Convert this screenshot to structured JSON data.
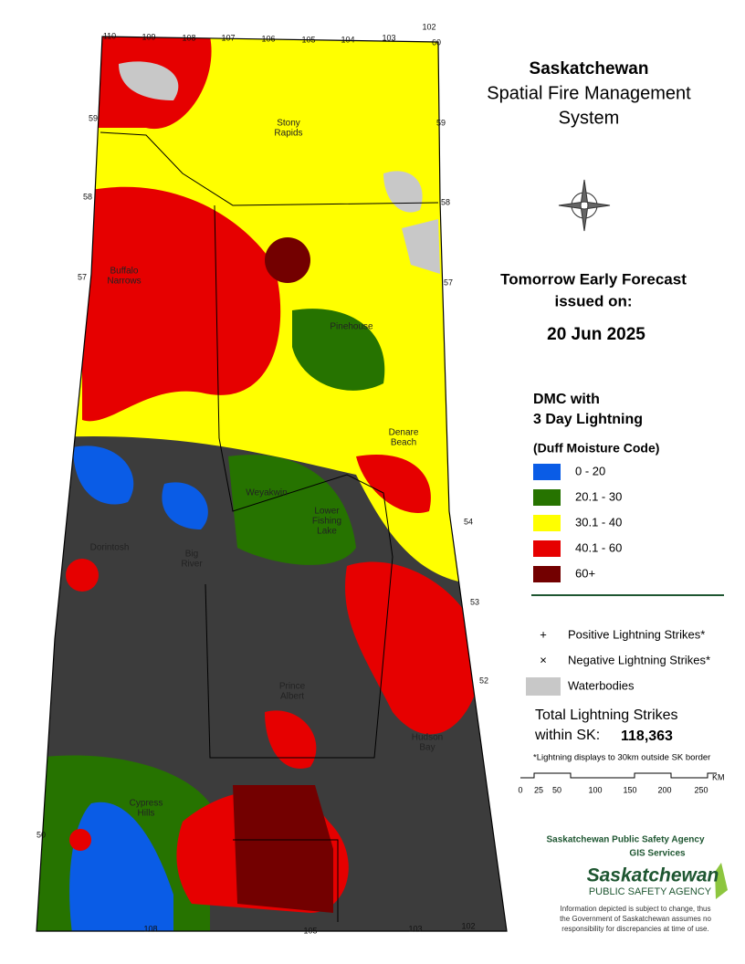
{
  "header": {
    "title": "Saskatchewan",
    "subtitle_lines": [
      "Spatial Fire Management",
      "System"
    ]
  },
  "forecast": {
    "lines": [
      "Tomorrow Early Forecast",
      "issued on:"
    ],
    "date": "20 Jun 2025"
  },
  "legend": {
    "title_lines": [
      "DMC with",
      "3 Day Lightning"
    ],
    "subtitle": "(Duff Moisture Code)",
    "classes": [
      {
        "label": "0 - 20",
        "color": "#0a5ce6"
      },
      {
        "label": "20.1 - 30",
        "color": "#267300"
      },
      {
        "label": "30.1 - 40",
        "color": "#ffff00"
      },
      {
        "label": "40.1 - 60",
        "color": "#e60000"
      },
      {
        "label": "60+",
        "color": "#730000"
      }
    ],
    "symbols": [
      {
        "symbol": "+",
        "label": "Positive Lightning Strikes*"
      },
      {
        "symbol": "×",
        "label": "Negative Lightning Strikes*"
      },
      {
        "label": "Waterbodies",
        "color": "#c8c8c8"
      }
    ]
  },
  "totals": {
    "label_lines": [
      "Total Lightning Strikes",
      "within SK:"
    ],
    "value": "118,363",
    "note": "*Lightning displays to 30km outside SK border"
  },
  "scale": {
    "ticks": [
      "0",
      "25",
      "50",
      "100",
      "150",
      "200",
      "250"
    ],
    "unit": "KM"
  },
  "agency": {
    "name": "Saskatchewan Public Safety Agency",
    "unit": "GIS  Services",
    "logo_lines": [
      "Saskatchewan",
      "PUBLIC SAFETY AGENCY"
    ],
    "disclaimer_lines": [
      "Information depicted is subject to change, thus",
      "the Government of Saskatchewan assumes no",
      "responsibility for discrepancies at time of use."
    ]
  },
  "places": [
    {
      "lines": [
        "Stony",
        "Rapids"
      ]
    },
    {
      "lines": [
        "Buffalo",
        "Narrows"
      ]
    },
    {
      "lines": [
        "Pinehouse"
      ]
    },
    {
      "lines": [
        "Denare",
        "Beach"
      ]
    },
    {
      "lines": [
        "Weyakwin"
      ]
    },
    {
      "lines": [
        "Lower",
        "Fishing",
        "Lake"
      ]
    },
    {
      "lines": [
        "Dorintosh"
      ]
    },
    {
      "lines": [
        "Big",
        "River"
      ]
    },
    {
      "lines": [
        "Prince",
        "Albert"
      ]
    },
    {
      "lines": [
        "Hudson",
        "Bay"
      ]
    },
    {
      "lines": [
        "Cypress",
        "Hills"
      ]
    }
  ],
  "grid_labels": [
    "110",
    "109",
    "108",
    "107",
    "106",
    "105",
    "104",
    "103",
    "102",
    "60",
    "59",
    "58",
    "57",
    "50",
    "59",
    "58",
    "57",
    "54",
    "53",
    "52",
    "108",
    "105",
    "103",
    "102"
  ]
}
